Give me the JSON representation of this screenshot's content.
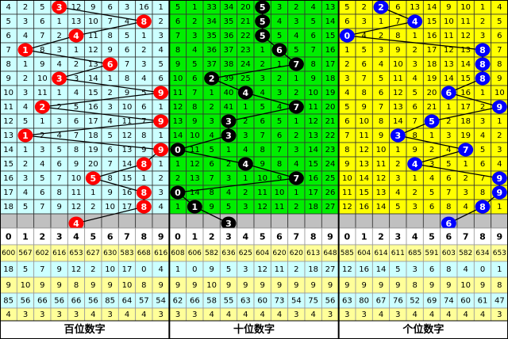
{
  "chart_data": {
    "type": "table",
    "sections": [
      {
        "label": "百位数字",
        "bg": "#ccffff",
        "ball_color": "#ff0000",
        "rows": [
          [
            4,
            2,
            5,
            3,
            12,
            9,
            6,
            3,
            16,
            1
          ],
          [
            5,
            3,
            6,
            1,
            13,
            10,
            7,
            4,
            8,
            2
          ],
          [
            6,
            4,
            7,
            2,
            4,
            11,
            8,
            5,
            1,
            3
          ],
          [
            7,
            1,
            8,
            3,
            1,
            12,
            9,
            6,
            2,
            4
          ],
          [
            8,
            1,
            9,
            4,
            2,
            13,
            6,
            7,
            3,
            5
          ],
          [
            9,
            2,
            10,
            3,
            3,
            14,
            1,
            8,
            4,
            6
          ],
          [
            10,
            3,
            11,
            1,
            4,
            15,
            2,
            9,
            5,
            9
          ],
          [
            11,
            4,
            2,
            2,
            5,
            16,
            3,
            10,
            6,
            1
          ],
          [
            12,
            5,
            1,
            3,
            6,
            17,
            4,
            11,
            7,
            9
          ],
          [
            13,
            1,
            2,
            4,
            7,
            18,
            5,
            12,
            8,
            1
          ],
          [
            14,
            1,
            3,
            5,
            8,
            19,
            6,
            13,
            9,
            9
          ],
          [
            15,
            2,
            4,
            6,
            9,
            20,
            7,
            14,
            8,
            1
          ],
          [
            16,
            3,
            5,
            7,
            10,
            5,
            8,
            15,
            1,
            2
          ],
          [
            17,
            4,
            6,
            8,
            11,
            1,
            9,
            16,
            8,
            3
          ],
          [
            18,
            5,
            7,
            9,
            12,
            2,
            10,
            17,
            8,
            4
          ]
        ],
        "draws": [
          3,
          8,
          4,
          1,
          6,
          3,
          9,
          2,
          9,
          1,
          9,
          8,
          5,
          8,
          8
        ],
        "next": 4,
        "stats": [
          [
            600,
            567,
            602,
            616,
            653,
            627,
            630,
            583,
            668,
            616
          ],
          [
            18,
            5,
            7,
            9,
            12,
            2,
            10,
            17,
            0,
            4
          ],
          [
            9,
            10,
            9,
            9,
            8,
            9,
            9,
            10,
            8,
            9
          ],
          [
            85,
            56,
            66,
            56,
            66,
            56,
            85,
            64,
            57,
            54
          ],
          [
            4,
            3,
            3,
            3,
            3,
            4,
            3,
            4,
            4,
            3
          ]
        ]
      },
      {
        "label": "十位数字",
        "bg": "#00ee00",
        "ball_color": "#000000",
        "rows": [
          [
            5,
            1,
            33,
            34,
            20,
            5,
            3,
            2,
            4,
            13
          ],
          [
            6,
            2,
            34,
            35,
            21,
            5,
            4,
            3,
            5,
            14
          ],
          [
            7,
            3,
            35,
            36,
            22,
            5,
            5,
            4,
            6,
            15
          ],
          [
            8,
            4,
            36,
            37,
            23,
            1,
            6,
            5,
            7,
            16
          ],
          [
            9,
            5,
            37,
            38,
            24,
            2,
            1,
            7,
            8,
            17
          ],
          [
            10,
            6,
            2,
            39,
            25,
            3,
            2,
            1,
            9,
            18
          ],
          [
            11,
            7,
            1,
            40,
            4,
            4,
            3,
            2,
            10,
            19
          ],
          [
            12,
            8,
            2,
            41,
            1,
            5,
            4,
            7,
            11,
            20
          ],
          [
            13,
            9,
            3,
            3,
            2,
            6,
            5,
            1,
            12,
            21
          ],
          [
            14,
            10,
            4,
            3,
            3,
            7,
            6,
            2,
            13,
            22
          ],
          [
            0,
            11,
            5,
            1,
            4,
            8,
            7,
            3,
            14,
            23
          ],
          [
            1,
            12,
            6,
            2,
            4,
            9,
            8,
            4,
            15,
            24
          ],
          [
            2,
            13,
            7,
            3,
            1,
            10,
            9,
            7,
            16,
            25
          ],
          [
            0,
            14,
            8,
            4,
            2,
            11,
            10,
            1,
            17,
            26
          ],
          [
            1,
            1,
            9,
            5,
            3,
            12,
            11,
            2,
            18,
            27
          ]
        ],
        "draws": [
          5,
          5,
          5,
          6,
          7,
          2,
          4,
          7,
          3,
          3,
          0,
          4,
          7,
          0,
          1
        ],
        "next": 3,
        "stats": [
          [
            608,
            606,
            582,
            636,
            625,
            604,
            620,
            620,
            613,
            648
          ],
          [
            1,
            0,
            9,
            5,
            3,
            12,
            11,
            2,
            18,
            27
          ],
          [
            9,
            9,
            10,
            9,
            9,
            9,
            9,
            9,
            9,
            9
          ],
          [
            62,
            66,
            58,
            55,
            63,
            60,
            73,
            54,
            75,
            56
          ],
          [
            3,
            3,
            4,
            4,
            4,
            4,
            4,
            3,
            4,
            3
          ]
        ]
      },
      {
        "label": "个位数字",
        "bg": "#ffff00",
        "ball_color": "#0000ff",
        "rows": [
          [
            5,
            2,
            2,
            6,
            13,
            14,
            9,
            10,
            1,
            4
          ],
          [
            6,
            3,
            1,
            7,
            4,
            15,
            10,
            11,
            2,
            5
          ],
          [
            0,
            4,
            2,
            8,
            1,
            16,
            11,
            12,
            3,
            6
          ],
          [
            1,
            5,
            3,
            9,
            2,
            17,
            12,
            13,
            8,
            7
          ],
          [
            2,
            6,
            4,
            10,
            3,
            18,
            13,
            14,
            8,
            8
          ],
          [
            3,
            7,
            5,
            11,
            4,
            19,
            14,
            15,
            8,
            9
          ],
          [
            4,
            8,
            6,
            12,
            5,
            20,
            6,
            16,
            1,
            10
          ],
          [
            5,
            9,
            7,
            13,
            6,
            21,
            1,
            17,
            2,
            9
          ],
          [
            6,
            10,
            8,
            14,
            7,
            5,
            2,
            18,
            3,
            1
          ],
          [
            7,
            11,
            9,
            3,
            8,
            1,
            3,
            19,
            4,
            2
          ],
          [
            8,
            12,
            10,
            1,
            9,
            2,
            4,
            7,
            5,
            3
          ],
          [
            9,
            13,
            11,
            2,
            4,
            3,
            5,
            1,
            6,
            4
          ],
          [
            10,
            14,
            12,
            3,
            1,
            4,
            6,
            2,
            7,
            9
          ],
          [
            11,
            15,
            13,
            4,
            2,
            5,
            7,
            3,
            8,
            9
          ],
          [
            12,
            16,
            14,
            5,
            3,
            6,
            8,
            4,
            8,
            1
          ]
        ],
        "draws": [
          2,
          4,
          0,
          8,
          8,
          8,
          6,
          9,
          5,
          3,
          7,
          4,
          9,
          9,
          8
        ],
        "next": 6,
        "stats": [
          [
            585,
            604,
            614,
            611,
            685,
            591,
            603,
            582,
            634,
            653
          ],
          [
            12,
            16,
            14,
            5,
            3,
            6,
            8,
            4,
            0,
            1
          ],
          [
            9,
            9,
            9,
            9,
            8,
            9,
            9,
            10,
            9,
            8
          ],
          [
            63,
            80,
            67,
            76,
            52,
            69,
            74,
            60,
            61,
            47
          ],
          [
            3,
            3,
            4,
            3,
            4,
            4,
            4,
            4,
            4,
            3
          ]
        ]
      }
    ],
    "header_digits": [
      "0",
      "1",
      "2",
      "3",
      "4",
      "5",
      "6",
      "7",
      "8",
      "9"
    ],
    "colors": {
      "stat_yellow": "#ffff99",
      "stat_cyan": "#ccffff",
      "next_row": "#c0c0c0",
      "grid": "#333333"
    }
  }
}
